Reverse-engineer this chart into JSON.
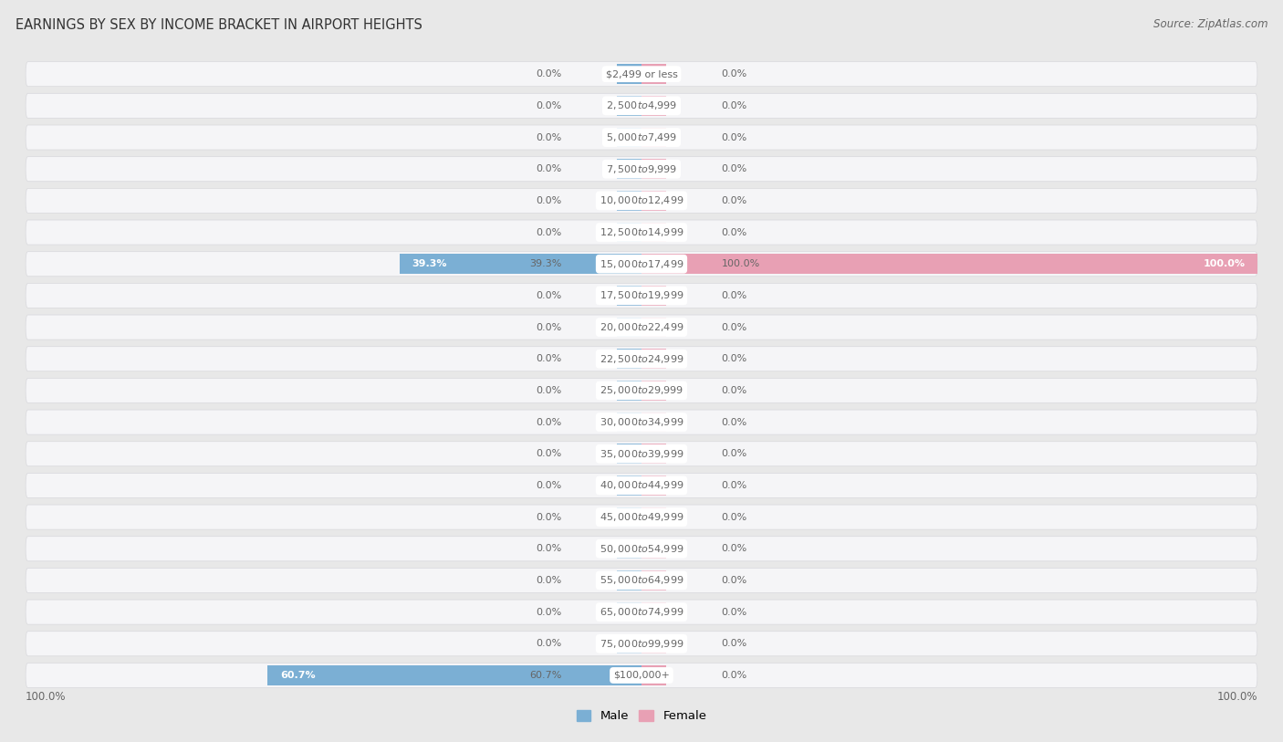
{
  "title": "EARNINGS BY SEX BY INCOME BRACKET IN AIRPORT HEIGHTS",
  "source": "Source: ZipAtlas.com",
  "categories": [
    "$2,499 or less",
    "$2,500 to $4,999",
    "$5,000 to $7,499",
    "$7,500 to $9,999",
    "$10,000 to $12,499",
    "$12,500 to $14,999",
    "$15,000 to $17,499",
    "$17,500 to $19,999",
    "$20,000 to $22,499",
    "$22,500 to $24,999",
    "$25,000 to $29,999",
    "$30,000 to $34,999",
    "$35,000 to $39,999",
    "$40,000 to $44,999",
    "$45,000 to $49,999",
    "$50,000 to $54,999",
    "$55,000 to $64,999",
    "$65,000 to $74,999",
    "$75,000 to $99,999",
    "$100,000+"
  ],
  "male_values": [
    0.0,
    0.0,
    0.0,
    0.0,
    0.0,
    0.0,
    39.3,
    0.0,
    0.0,
    0.0,
    0.0,
    0.0,
    0.0,
    0.0,
    0.0,
    0.0,
    0.0,
    0.0,
    0.0,
    60.7
  ],
  "female_values": [
    0.0,
    0.0,
    0.0,
    0.0,
    0.0,
    0.0,
    100.0,
    0.0,
    0.0,
    0.0,
    0.0,
    0.0,
    0.0,
    0.0,
    0.0,
    0.0,
    0.0,
    0.0,
    0.0,
    0.0
  ],
  "male_color": "#7bafd4",
  "female_color": "#e8a0b4",
  "male_label": "Male",
  "female_label": "Female",
  "bg_color": "#e8e8e8",
  "row_color": "#f5f5f7",
  "row_border_color": "#d8d8dc",
  "max_value": 100.0,
  "stub_size": 4.0,
  "label_color": "#666666",
  "title_color": "#333333",
  "title_fontsize": 10.5,
  "label_fontsize": 8.0,
  "category_fontsize": 8.0,
  "axis_label_fontsize": 8.5,
  "source_fontsize": 8.5
}
